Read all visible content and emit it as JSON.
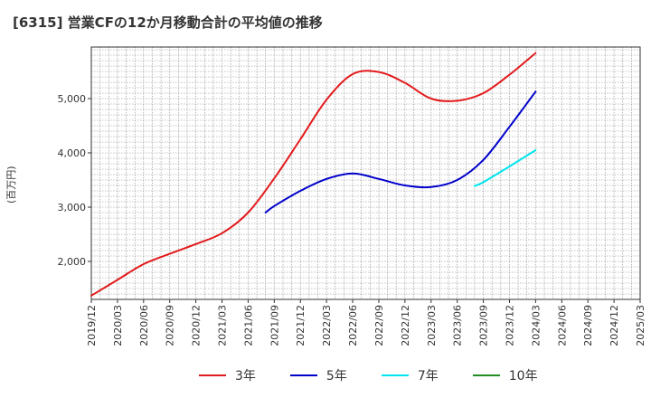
{
  "chart_data": {
    "type": "line",
    "title": "[6315]  営業CFの12か月移動合計の平均値の推移",
    "ylabel": "(百万円)",
    "xlabel": "",
    "ylim": [
      1300,
      5950
    ],
    "yticks": [
      2000,
      3000,
      4000,
      5000
    ],
    "ytick_labels": [
      "2,000",
      "3,000",
      "4,000",
      "5,000"
    ],
    "xticks": [
      "2019/12",
      "2020/03",
      "2020/06",
      "2020/09",
      "2020/12",
      "2021/03",
      "2021/06",
      "2021/09",
      "2021/12",
      "2022/03",
      "2022/06",
      "2022/09",
      "2022/12",
      "2023/03",
      "2023/06",
      "2023/09",
      "2023/12",
      "2024/03",
      "2024/06",
      "2024/09",
      "2024/12",
      "2025/03"
    ],
    "grid": true,
    "legend_position": "bottom",
    "series": [
      {
        "name": "3年",
        "color": "#e31a1c",
        "x": [
          "2019/12",
          "2020/03",
          "2020/06",
          "2020/09",
          "2020/12",
          "2021/03",
          "2021/06",
          "2021/09",
          "2021/12",
          "2022/03",
          "2022/06",
          "2022/09",
          "2022/12",
          "2023/03",
          "2023/06",
          "2023/09",
          "2023/12",
          "2024/03"
        ],
        "values": [
          1370,
          1660,
          1950,
          2140,
          2320,
          2520,
          2900,
          3530,
          4250,
          4980,
          5450,
          5490,
          5290,
          5000,
          4960,
          5100,
          5440,
          5840
        ]
      },
      {
        "name": "5年",
        "color": "#0000cc",
        "x": [
          "2021/08",
          "2021/09",
          "2021/12",
          "2022/03",
          "2022/06",
          "2022/09",
          "2022/12",
          "2023/03",
          "2023/06",
          "2023/09",
          "2023/12",
          "2024/03"
        ],
        "values": [
          2900,
          3020,
          3300,
          3520,
          3620,
          3520,
          3400,
          3370,
          3500,
          3870,
          4480,
          5130
        ]
      },
      {
        "name": "7年",
        "color": "#00e5ee",
        "x": [
          "2023/08",
          "2023/09",
          "2023/12",
          "2024/03"
        ],
        "values": [
          3390,
          3460,
          3750,
          4050
        ]
      },
      {
        "name": "10年",
        "color": "#228b22",
        "x": [],
        "values": []
      }
    ]
  }
}
